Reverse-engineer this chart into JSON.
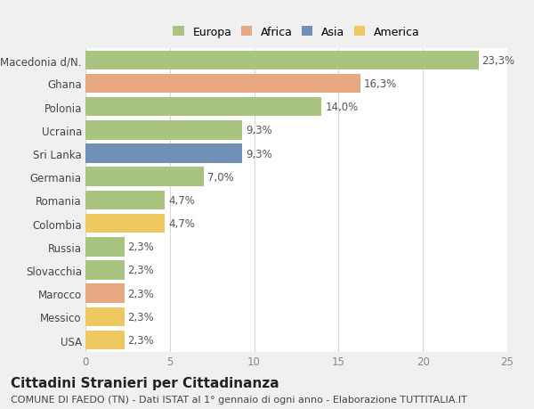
{
  "categories": [
    "Macedonia d/N.",
    "Ghana",
    "Polonia",
    "Ucraina",
    "Sri Lanka",
    "Germania",
    "Romania",
    "Colombia",
    "Russia",
    "Slovacchia",
    "Marocco",
    "Messico",
    "USA"
  ],
  "values": [
    23.3,
    16.3,
    14.0,
    9.3,
    9.3,
    7.0,
    4.7,
    4.7,
    2.3,
    2.3,
    2.3,
    2.3,
    2.3
  ],
  "labels": [
    "23,3%",
    "16,3%",
    "14,0%",
    "9,3%",
    "9,3%",
    "7,0%",
    "4,7%",
    "4,7%",
    "2,3%",
    "2,3%",
    "2,3%",
    "2,3%",
    "2,3%"
  ],
  "colors": [
    "#a8c47e",
    "#e8a882",
    "#a8c47e",
    "#a8c47e",
    "#7090b8",
    "#a8c47e",
    "#a8c47e",
    "#f0c860",
    "#a8c47e",
    "#a8c47e",
    "#e8a882",
    "#f0c860",
    "#f0c860"
  ],
  "legend_labels": [
    "Europa",
    "Africa",
    "Asia",
    "America"
  ],
  "legend_colors": [
    "#a8c47e",
    "#e8a882",
    "#7090b8",
    "#f0c860"
  ],
  "title": "Cittadini Stranieri per Cittadinanza",
  "subtitle": "COMUNE DI FAEDO (TN) - Dati ISTAT al 1° gennaio di ogni anno - Elaborazione TUTTITALIA.IT",
  "xlim": [
    0,
    25
  ],
  "xticks": [
    0,
    5,
    10,
    15,
    20,
    25
  ],
  "background_color": "#f0f0f0",
  "plot_background": "#ffffff",
  "grid_color": "#d8d8d8",
  "label_fontsize": 8.5,
  "tick_fontsize": 8.5,
  "title_fontsize": 11,
  "subtitle_fontsize": 8
}
